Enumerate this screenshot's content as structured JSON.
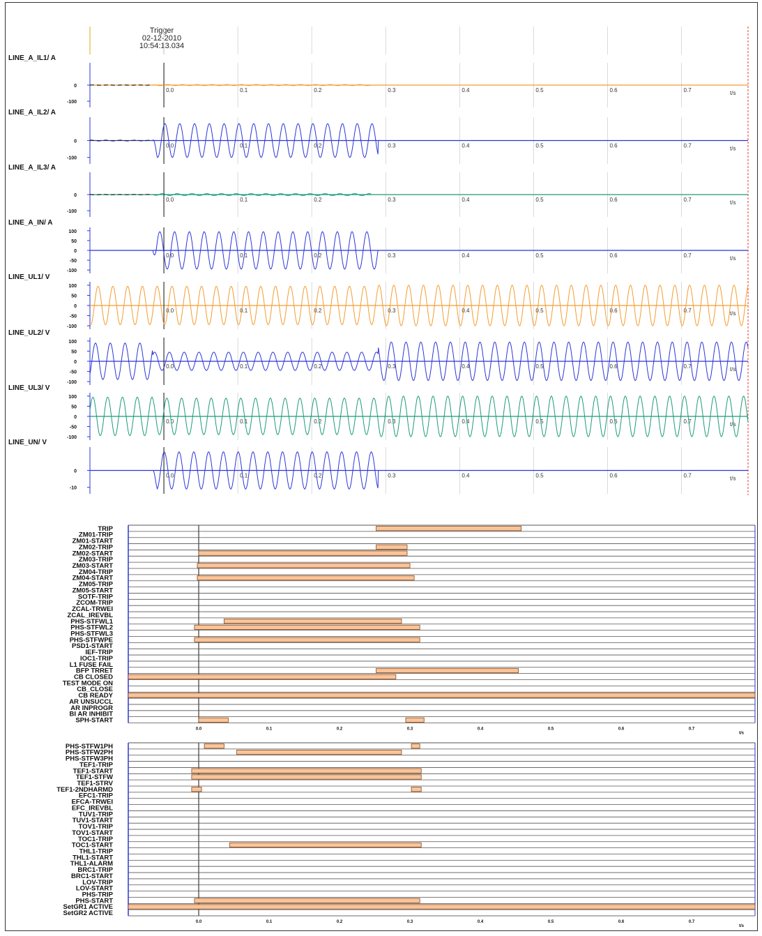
{
  "trigger": {
    "label": "Trigger",
    "date": "02-12-2010",
    "time": "10:54:13.034"
  },
  "time_unit": "t/s",
  "colors": {
    "orange": "#f39c2e",
    "blue": "#2b35d8",
    "green": "#1a9b78",
    "bar_fill": "#f9c49a",
    "bar_stroke": "#8a4a1c",
    "grid": "#d9d9d9",
    "endline": "#e53b2b"
  },
  "chart_data": [
    {
      "type": "line",
      "x_ticks": [
        0.0,
        0.1,
        0.2,
        0.3,
        0.4,
        0.5,
        0.6,
        0.7
      ],
      "xlim": [
        -0.1,
        0.79
      ],
      "xlabel": "t/s",
      "series": [
        {
          "name": "LINE_A_IL1/ A",
          "color": "#f39c2e",
          "yticks": [
            "0",
            "-100"
          ],
          "ylim": [
            -130,
            130
          ],
          "amplitude_before": 1,
          "amplitude_fault": 3,
          "amplitude_after": 0,
          "fault_start": -0.015,
          "fault_end": 0.28,
          "dashed_prefault": true,
          "fault_sinus_until": 0.28,
          "frequency_hz": 50
        },
        {
          "name": "LINE_A_IL2/ A",
          "color": "#2b35d8",
          "yticks": [
            "0",
            "-100"
          ],
          "ylim": [
            -130,
            130
          ],
          "amplitude_before": 2,
          "amplitude_fault": 100,
          "amplitude_after": 0,
          "fault_start": -0.015,
          "fault_end": 0.29,
          "dashed_prefault": true,
          "frequency_hz": 50
        },
        {
          "name": "LINE_A_IL3/ A",
          "color": "#1a9b78",
          "yticks": [
            "0",
            "-100"
          ],
          "ylim": [
            -130,
            130
          ],
          "amplitude_before": 1,
          "amplitude_fault": 6,
          "amplitude_after": 0,
          "fault_start": -0.015,
          "fault_end": 0.28,
          "dashed_prefault": true,
          "frequency_hz": 50
        },
        {
          "name": "LINE_A_IN/ A",
          "color": "#2b35d8",
          "yticks": [
            "100",
            "50",
            "0",
            "-50",
            "-100"
          ],
          "ylim": [
            -110,
            110
          ],
          "amplitude_before": 0,
          "amplitude_fault": 95,
          "amplitude_after": 0,
          "fault_start": -0.015,
          "fault_end": 0.29,
          "dashed_prefault": false,
          "frequency_hz": 50
        },
        {
          "name": "LINE_UL1/ V",
          "color": "#f39c2e",
          "yticks": [
            "100",
            "50",
            "0",
            "-50",
            "-100"
          ],
          "ylim": [
            -110,
            110
          ],
          "amplitude_before": 95,
          "amplitude_fault": 95,
          "amplitude_after": 100,
          "fault_start": -0.015,
          "fault_end": 0.29,
          "dashed_prefault": false,
          "frequency_hz": 50
        },
        {
          "name": "LINE_UL2/ V",
          "color": "#2b35d8",
          "yticks": [
            "100",
            "50",
            "0",
            "-50",
            "-100"
          ],
          "ylim": [
            -110,
            110
          ],
          "amplitude_before": 90,
          "amplitude_fault": 45,
          "amplitude_after": 95,
          "fault_start": -0.015,
          "fault_end": 0.29,
          "dashed_prefault": false,
          "frequency_hz": 50
        },
        {
          "name": "LINE_UL3/ V",
          "color": "#1a9b78",
          "yticks": [
            "100",
            "50",
            "0",
            "-50",
            "-100"
          ],
          "ylim": [
            -110,
            110
          ],
          "amplitude_before": 95,
          "amplitude_fault": 90,
          "amplitude_after": 100,
          "fault_start": -0.015,
          "fault_end": 0.29,
          "dashed_prefault": false,
          "frequency_hz": 50
        },
        {
          "name": "LINE_UN/ V",
          "color": "#2b35d8",
          "yticks": [
            "0",
            "-10"
          ],
          "ylim": [
            -13,
            13
          ],
          "amplitude_before": 0,
          "amplitude_fault": 11,
          "amplitude_after": 0,
          "fault_start": -0.015,
          "fault_end": 0.29,
          "dashed_prefault": false,
          "frequency_hz": 50
        }
      ]
    },
    {
      "type": "timeline",
      "x_ticks": [
        0.0,
        0.1,
        0.2,
        0.3,
        0.4,
        0.5,
        0.6,
        0.7
      ],
      "xlim": [
        -0.1,
        0.79
      ],
      "xlabel": "t/s",
      "signals": [
        {
          "name": "TRIP",
          "on": [
            [
              0.252,
              0.458
            ]
          ]
        },
        {
          "name": "ZM01-TRIP",
          "on": []
        },
        {
          "name": "ZM01-START",
          "on": []
        },
        {
          "name": "ZM02-TRIP",
          "on": [
            [
              0.252,
              0.296
            ]
          ]
        },
        {
          "name": "ZM02-START",
          "on": [
            [
              0.0,
              0.296
            ]
          ]
        },
        {
          "name": "ZM03-TRIP",
          "on": []
        },
        {
          "name": "ZM03-START",
          "on": [
            [
              -0.002,
              0.3
            ]
          ]
        },
        {
          "name": "ZM04-TRIP",
          "on": []
        },
        {
          "name": "ZM04-START",
          "on": [
            [
              -0.002,
              0.306
            ]
          ]
        },
        {
          "name": "ZM05-TRIP",
          "on": []
        },
        {
          "name": "ZM05-START",
          "on": []
        },
        {
          "name": "SOTF-TRIP",
          "on": []
        },
        {
          "name": "ZCOM-TRIP",
          "on": []
        },
        {
          "name": "ZCAL-TRWEI",
          "on": []
        },
        {
          "name": "ZCAL_IREVBL",
          "on": []
        },
        {
          "name": "PHS-STFWL1",
          "on": [
            [
              0.036,
              0.288
            ]
          ]
        },
        {
          "name": "PHS-STFWL2",
          "on": [
            [
              -0.006,
              0.314
            ]
          ]
        },
        {
          "name": "PHS-STFWL3",
          "on": []
        },
        {
          "name": "PHS-STFWPE",
          "on": [
            [
              -0.006,
              0.314
            ]
          ]
        },
        {
          "name": "PSD1-START",
          "on": []
        },
        {
          "name": "IEF-TRIP",
          "on": []
        },
        {
          "name": "IOC1-TRIP",
          "on": []
        },
        {
          "name": "L1 FUSE FAIL",
          "on": []
        },
        {
          "name": "BFP TRRET",
          "on": [
            [
              0.252,
              0.454
            ]
          ]
        },
        {
          "name": "CB CLOSED",
          "on": [
            [
              -0.1,
              0.28
            ]
          ]
        },
        {
          "name": "TEST MODE ON",
          "on": []
        },
        {
          "name": "CB_CLOSE",
          "on": []
        },
        {
          "name": "CB READY",
          "on": [
            [
              -0.1,
              0.79
            ]
          ]
        },
        {
          "name": "AR UNSUCCL",
          "on": []
        },
        {
          "name": "AR INPROGR",
          "on": []
        },
        {
          "name": "BI AR INHIBIT",
          "on": []
        },
        {
          "name": "SPH-START",
          "on": [
            [
              0.0,
              0.042
            ],
            [
              0.294,
              0.32
            ]
          ]
        }
      ]
    },
    {
      "type": "timeline",
      "x_ticks": [
        0.0,
        0.1,
        0.2,
        0.3,
        0.4,
        0.5,
        0.6,
        0.7
      ],
      "xlim": [
        -0.1,
        0.79
      ],
      "xlabel": "t/s",
      "signals": [
        {
          "name": "PHS-STFW1PH",
          "on": [
            [
              0.008,
              0.036
            ],
            [
              0.302,
              0.314
            ]
          ]
        },
        {
          "name": "PHS-STFW2PH",
          "on": [
            [
              0.054,
              0.288
            ]
          ]
        },
        {
          "name": "PHS-STFW3PH",
          "on": []
        },
        {
          "name": "TEF1-TRIP",
          "on": []
        },
        {
          "name": "TEF1-START",
          "on": [
            [
              -0.01,
              0.316
            ]
          ]
        },
        {
          "name": "TEF1-STFW",
          "on": [
            [
              -0.01,
              0.316
            ]
          ]
        },
        {
          "name": "TEF1-STRV",
          "on": []
        },
        {
          "name": "TEF1-2NDHARMD",
          "on": [
            [
              -0.01,
              0.004
            ],
            [
              0.302,
              0.316
            ]
          ]
        },
        {
          "name": "EFC1-TRIP",
          "on": []
        },
        {
          "name": "EFCA-TRWEI",
          "on": []
        },
        {
          "name": "EFC_IREVBL",
          "on": []
        },
        {
          "name": "TUV1-TRIP",
          "on": []
        },
        {
          "name": "TUV1-START",
          "on": []
        },
        {
          "name": "TOV1-TRIP",
          "on": []
        },
        {
          "name": "TOV1-START",
          "on": []
        },
        {
          "name": "TOC1-TRIP",
          "on": []
        },
        {
          "name": "TOC1-START",
          "on": [
            [
              0.044,
              0.316
            ]
          ]
        },
        {
          "name": "THL1-TRIP",
          "on": []
        },
        {
          "name": "THL1-START",
          "on": []
        },
        {
          "name": "THL1-ALARM",
          "on": []
        },
        {
          "name": "BRC1-TRIP",
          "on": []
        },
        {
          "name": "BRC1-START",
          "on": []
        },
        {
          "name": "LOV-TRIP",
          "on": []
        },
        {
          "name": "LOV-START",
          "on": []
        },
        {
          "name": "PHS-TRIP",
          "on": []
        },
        {
          "name": "PHS-START",
          "on": [
            [
              -0.006,
              0.314
            ]
          ]
        },
        {
          "name": "SetGR1 ACTIVE",
          "on": [
            [
              -0.1,
              0.79
            ]
          ]
        },
        {
          "name": "SetGR2 ACTIVE",
          "on": []
        }
      ]
    }
  ]
}
